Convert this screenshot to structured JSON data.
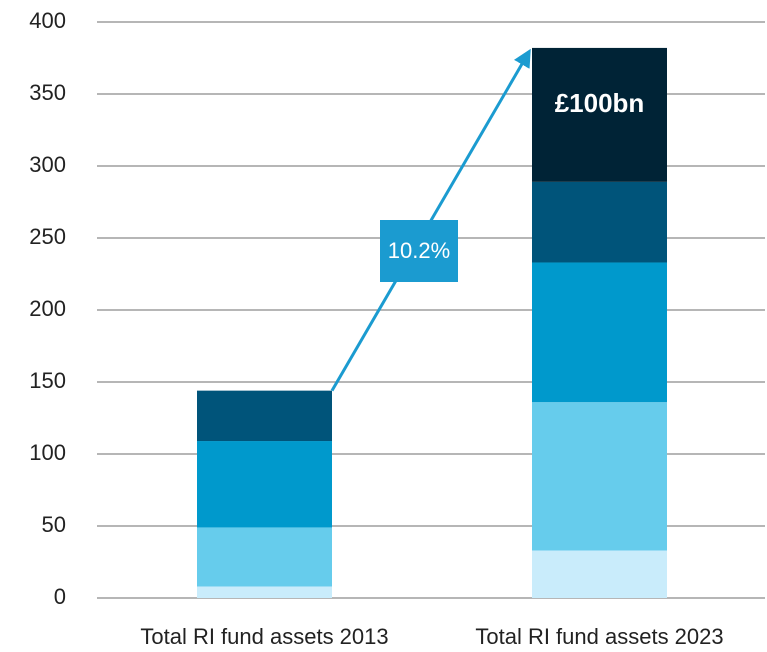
{
  "chart_data": {
    "type": "stacked_bar",
    "categories": [
      "Total RI fund assets 2013",
      "Total RI fund assets 2023"
    ],
    "series": [
      {
        "color": "#c9ecfb",
        "values": [
          8,
          33
        ]
      },
      {
        "color": "#66ccec",
        "values": [
          41,
          103
        ]
      },
      {
        "color": "#0099cc",
        "values": [
          60,
          97
        ]
      },
      {
        "color": "#00547a",
        "values": [
          35,
          56
        ]
      },
      {
        "color": "#002336",
        "values": [
          null,
          93
        ]
      }
    ],
    "ylim": [
      0,
      400
    ],
    "yticks": [
      0,
      50,
      100,
      150,
      200,
      250,
      300,
      350,
      400
    ],
    "grid": true,
    "annotations": [
      {
        "text": "10.2%"
      },
      {
        "text": "£100bn"
      }
    ]
  }
}
